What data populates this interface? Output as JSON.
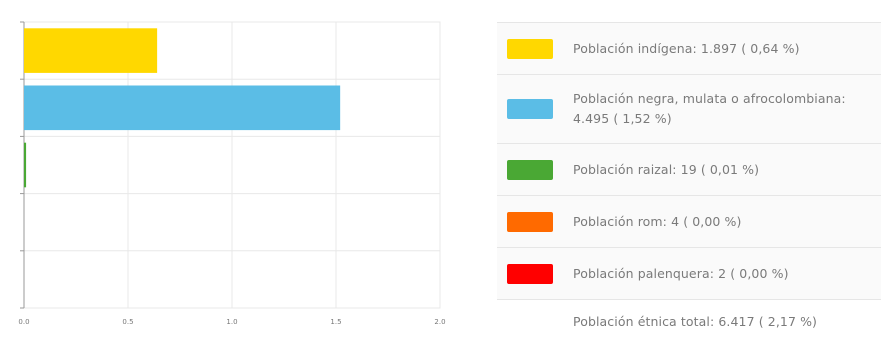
{
  "colors": {
    "indigena": "#ffd800",
    "negra": "#5bbde6",
    "raizal": "#4aa834",
    "rom": "#ff6a00",
    "palenquera": "#ff0000",
    "grid": "#e8e8e8",
    "axis": "#999999"
  },
  "chart_data": {
    "type": "bar",
    "orientation": "horizontal",
    "categories": [
      "Población indígena",
      "Población negra, mulata o afrocolombiana",
      "Población raizal",
      "Población rom",
      "Población palenquera"
    ],
    "values": [
      0.64,
      1.52,
      0.01,
      0.0,
      0.0
    ],
    "colors": [
      "#ffd800",
      "#5bbde6",
      "#4aa834",
      "#ff6a00",
      "#ff0000"
    ],
    "xlim": [
      0,
      2.0
    ],
    "xticks": [
      "0.0",
      "0.5",
      "1.0",
      "1.5",
      "2.0"
    ],
    "grid": true,
    "legend_placement": "right"
  },
  "legend": {
    "items": [
      {
        "text": "Población indígena:  1.897 ( 0,64 %)",
        "color": "#ffd800"
      },
      {
        "text": "Población negra, mulata o afrocolombiana:  4.495 ( 1,52 %)",
        "color": "#5bbde6"
      },
      {
        "text": "Población raizal:  19 ( 0,01 %)",
        "color": "#4aa834"
      },
      {
        "text": "Población rom:  4 ( 0,00 %)",
        "color": "#ff6a00"
      },
      {
        "text": "Población palenquera:  2 ( 0,00 %)",
        "color": "#ff0000"
      }
    ],
    "total": "Población étnica total:  6.417 ( 2,17 %)"
  }
}
